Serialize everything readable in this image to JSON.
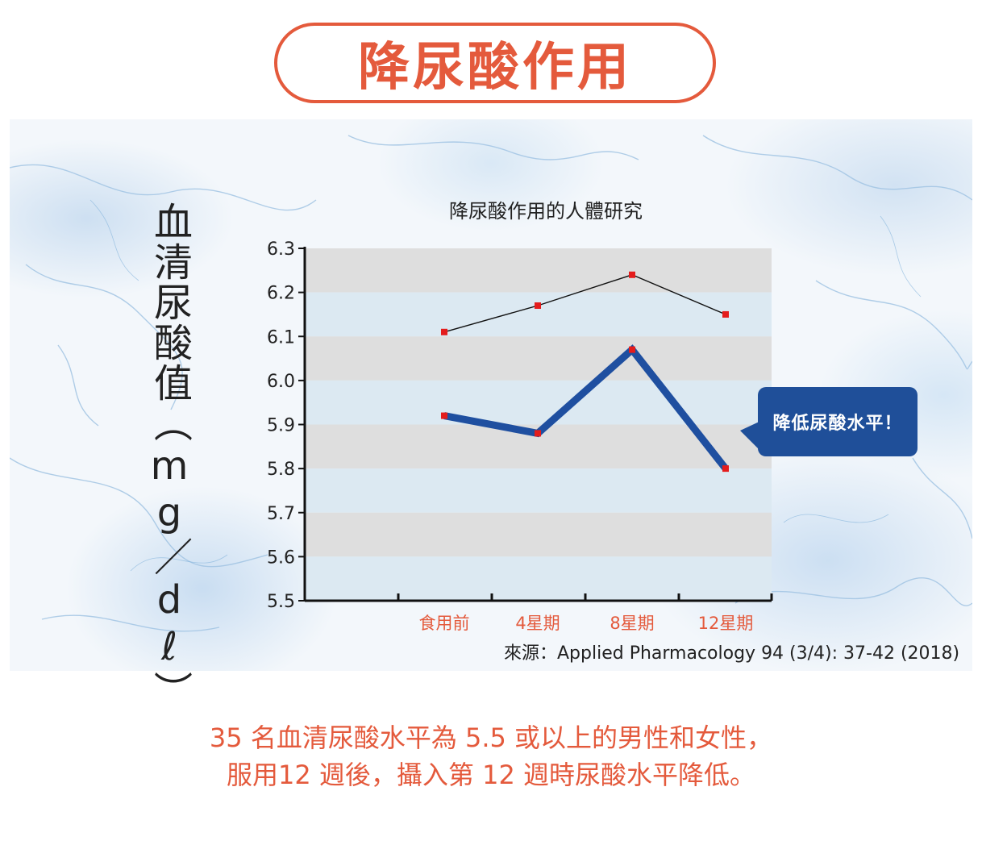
{
  "heading": "降尿酸作用",
  "ylabel_text": "血清尿酸值（mg／dℓ）",
  "callout_text": "降低尿酸水平！",
  "source_text": "來源：Applied Pharmacology 94 (3/4): 37-42 (2018)",
  "caption": {
    "line1": "35 名血清尿酸水平為 5.5 或以上的男性和女性，",
    "line2": "服用12 週後，攝入第 12 週時尿酸水平降低。"
  },
  "colors": {
    "accent": "#e45a3c",
    "line_main": "#1f4fa0",
    "line_thin": "#111111",
    "marker": "#e41c1c",
    "band_gray": "#dedede",
    "band_blue": "#dce9f2",
    "callout_bg": "#1f4f99"
  },
  "chart_data": {
    "type": "line",
    "title": "降尿酸作用的人體研究",
    "xlabel": "",
    "ylabel": "血清尿酸值（mg／dℓ）",
    "categories": [
      "食用前",
      "4星期",
      "8星期",
      "12星期"
    ],
    "ylim": [
      5.5,
      6.3
    ],
    "yticks": [
      "5.5",
      "5.6",
      "5.7",
      "5.8",
      "5.9",
      "6.0",
      "6.1",
      "6.2",
      "6.3"
    ],
    "series": [
      {
        "values": [
          5.92,
          5.88,
          6.07,
          5.8
        ],
        "style": "thick"
      },
      {
        "values": [
          6.11,
          6.17,
          6.24,
          6.15
        ],
        "style": "thin"
      }
    ],
    "grid": "horizontal alternating bands",
    "legend": "none"
  }
}
